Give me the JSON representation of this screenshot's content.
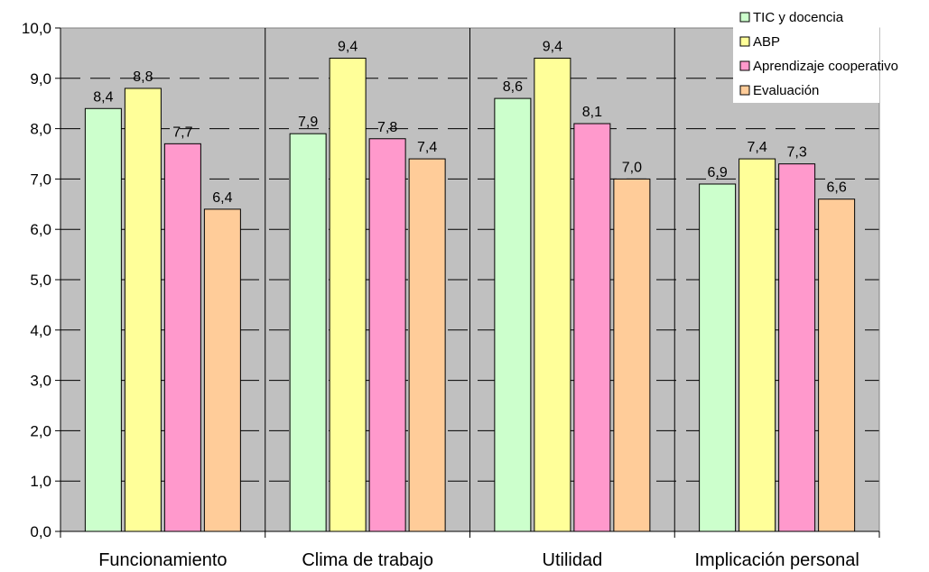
{
  "chart_data": {
    "type": "bar",
    "categories": [
      "Funcionamiento",
      "Clima de trabajo",
      "Utilidad",
      "Implicación personal"
    ],
    "series": [
      {
        "name": "TIC y docencia",
        "color": "#CCFFCC",
        "values": [
          8.4,
          7.9,
          8.6,
          6.9
        ],
        "labels": [
          "8,4",
          "7,9",
          "8,6",
          "6,9"
        ]
      },
      {
        "name": "ABP",
        "color": "#FFFF99",
        "values": [
          8.8,
          9.4,
          9.4,
          7.4
        ],
        "labels": [
          "8,8",
          "9,4",
          "9,4",
          "7,4"
        ]
      },
      {
        "name": "Aprendizaje cooperativo",
        "color": "#FF99CC",
        "values": [
          7.7,
          7.8,
          8.1,
          7.3
        ],
        "labels": [
          "7,7",
          "7,8",
          "8,1",
          "7,3"
        ]
      },
      {
        "name": "Evaluación",
        "color": "#FFCC99",
        "values": [
          6.4,
          7.4,
          7.0,
          6.6
        ],
        "labels": [
          "6,4",
          "7,4",
          "7,0",
          "6,6"
        ]
      }
    ],
    "ylim": [
      0,
      10
    ],
    "yticks": [
      "0,0",
      "1,0",
      "2,0",
      "3,0",
      "4,0",
      "5,0",
      "6,0",
      "7,0",
      "8,0",
      "9,0",
      "10,0"
    ],
    "title": "",
    "xlabel": "",
    "ylabel": "",
    "legend_position": "top-right",
    "grid": true,
    "plot_background": "#C0C0C0"
  }
}
